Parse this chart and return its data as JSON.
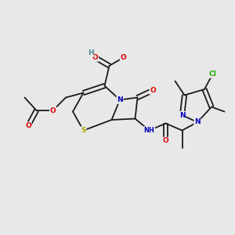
{
  "background_color": "#e8e8e8",
  "bond_color": "#1a1a1a",
  "atom_colors": {
    "O": "#dd0000",
    "N": "#0000bb",
    "S": "#aaaa00",
    "Cl": "#22aa00",
    "H": "#4a8a8a",
    "C": "#1a1a1a"
  },
  "figsize": [
    3.0,
    3.0
  ],
  "dpi": 100,
  "lw": 1.3,
  "fs": 6.5,
  "doffset": 0.1
}
